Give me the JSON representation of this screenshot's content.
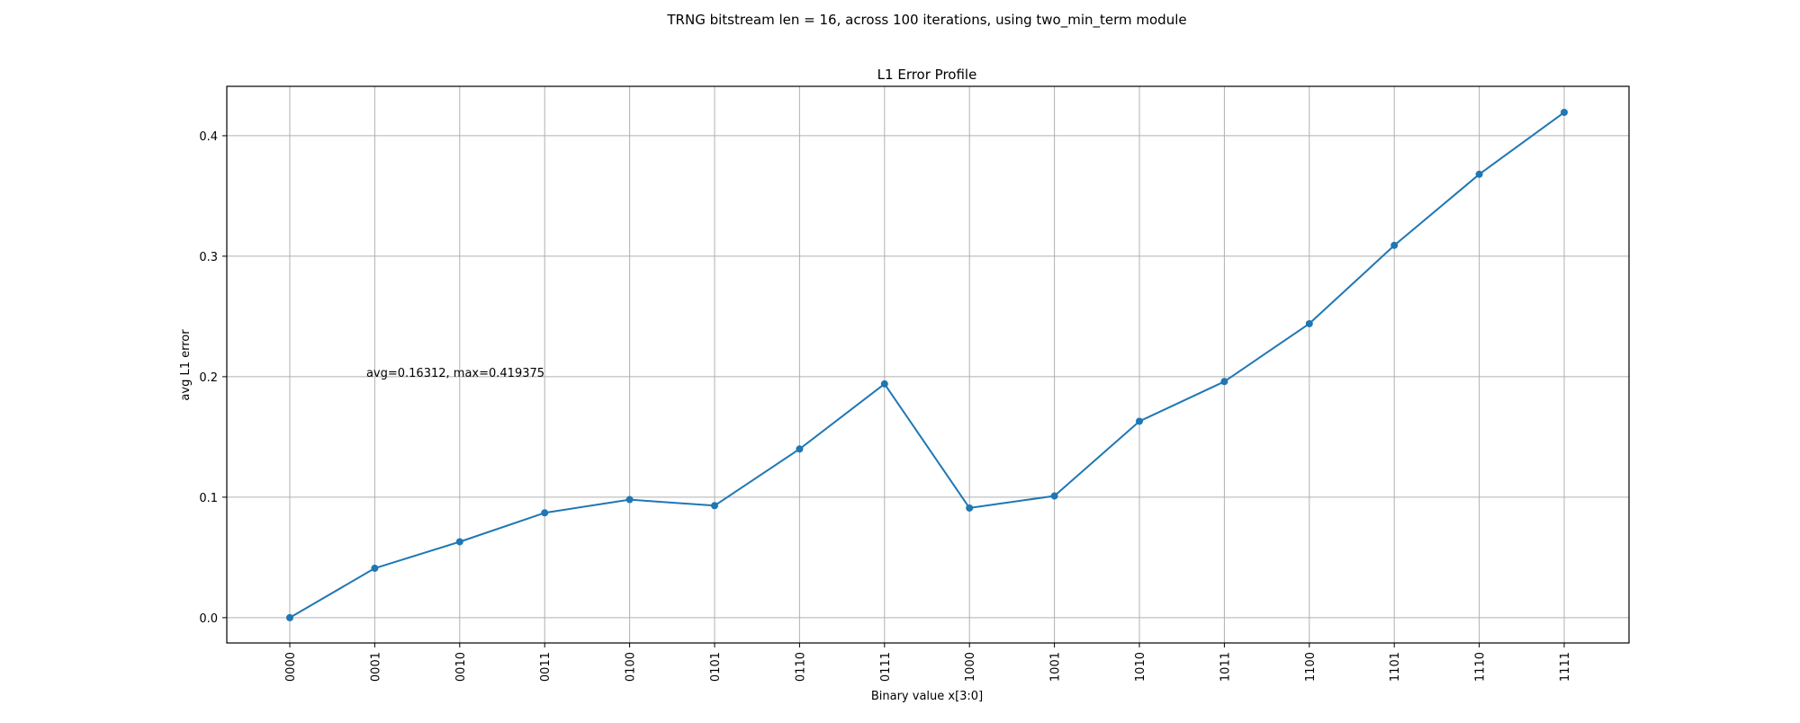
{
  "figure": {
    "suptitle": "TRNG bitstream len = 16, across 100 iterations, using two_min_term module"
  },
  "chart_data": {
    "type": "line",
    "title": "L1 Error Profile",
    "xlabel": "Binary value x[3:0]",
    "ylabel": "avg L1 error",
    "categories": [
      "0000",
      "0001",
      "0010",
      "0011",
      "0100",
      "0101",
      "0110",
      "0111",
      "1000",
      "1001",
      "1010",
      "1011",
      "1100",
      "1101",
      "1110",
      "1111"
    ],
    "series": [
      {
        "values": [
          0.0,
          0.041,
          0.063,
          0.087,
          0.098,
          0.093,
          0.14,
          0.194,
          0.091,
          0.101,
          0.163,
          0.196,
          0.244,
          0.309,
          0.368,
          0.419375
        ],
        "color": "#1f77b4",
        "marker": "circle"
      }
    ],
    "ylim": [
      -0.021,
      0.441
    ],
    "yticks": [
      0.0,
      0.1,
      0.2,
      0.3,
      0.4
    ],
    "ytick_labels": [
      "0.0",
      "0.1",
      "0.2",
      "0.3",
      "0.4"
    ],
    "grid": true,
    "annotation": {
      "text": "avg=0.16312, max=0.419375",
      "x": 0.9,
      "y": 0.2
    }
  }
}
